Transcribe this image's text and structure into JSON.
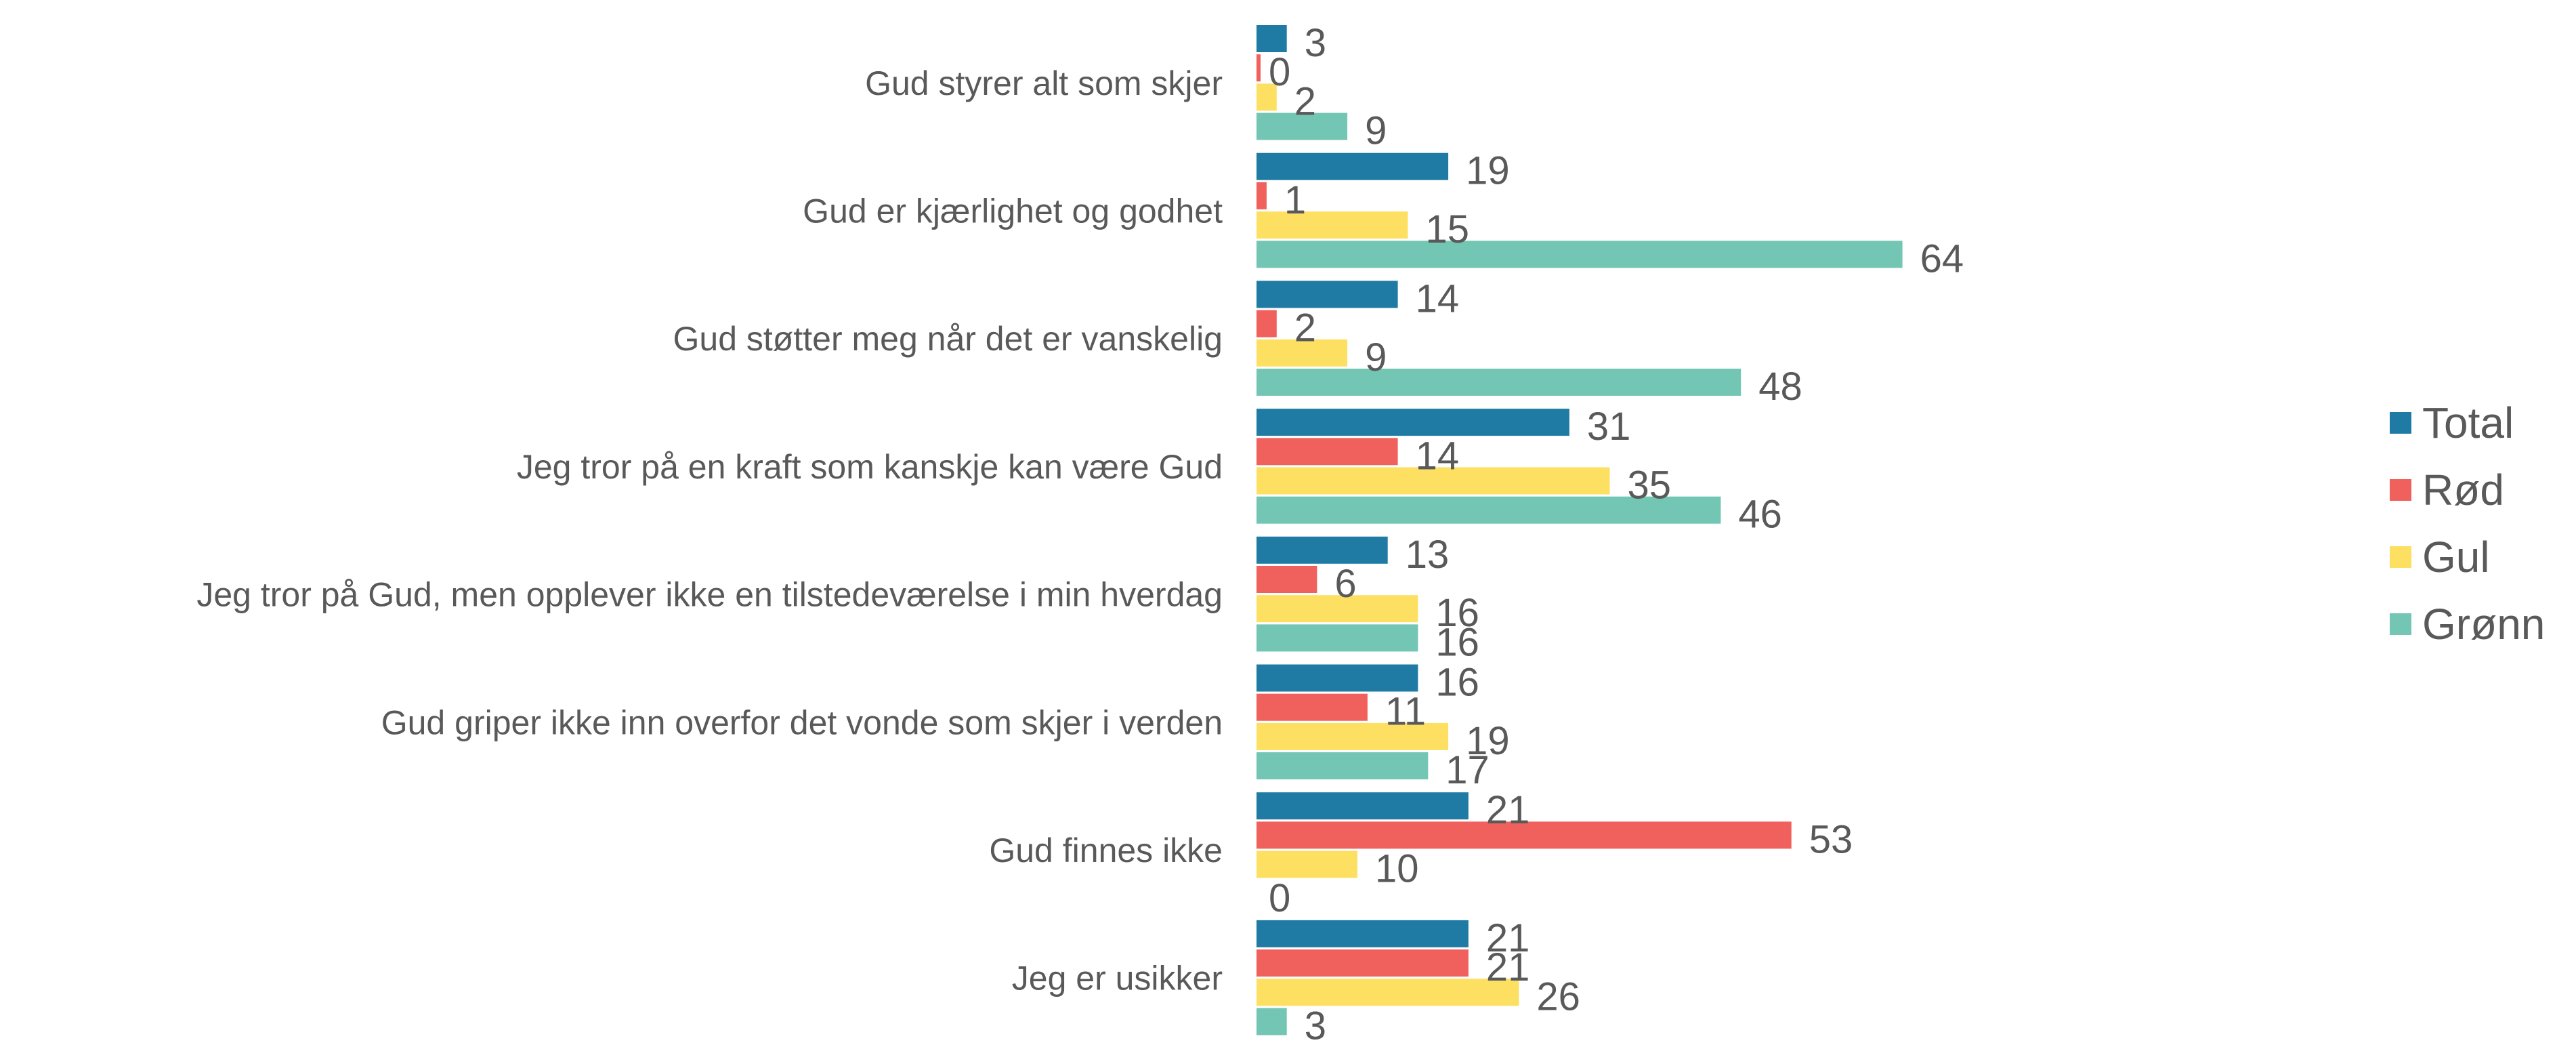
{
  "chart_data": {
    "type": "bar",
    "orientation": "horizontal",
    "title": "",
    "xlabel": "",
    "ylabel": "",
    "xlim": [
      0,
      64
    ],
    "grid": false,
    "legend_position": "right",
    "categories": [
      "Gud styrer alt som skjer",
      "Gud er kjærlighet og godhet",
      "Gud støtter meg når det er vanskelig",
      "Jeg tror på en kraft som kanskje kan være Gud",
      "Jeg tror på Gud, men opplever ikke en tilstedeværelse i min hverdag",
      "Gud griper ikke inn overfor det vonde som skjer i verden",
      "Gud finnes ikke",
      "Jeg er usikker"
    ],
    "series": [
      {
        "name": "Total",
        "color": "#1f7ba3",
        "values": [
          3,
          19,
          14,
          31,
          13,
          16,
          21,
          21
        ]
      },
      {
        "name": "Rød",
        "color": "#f0605d",
        "values": [
          0,
          1,
          2,
          14,
          6,
          11,
          53,
          21
        ]
      },
      {
        "name": "Gul",
        "color": "#fde062",
        "values": [
          2,
          15,
          9,
          35,
          16,
          19,
          10,
          26
        ]
      },
      {
        "name": "Grønn",
        "color": "#73c5b4",
        "values": [
          9,
          64,
          48,
          46,
          16,
          17,
          0,
          3
        ]
      }
    ],
    "data_labels": true
  }
}
